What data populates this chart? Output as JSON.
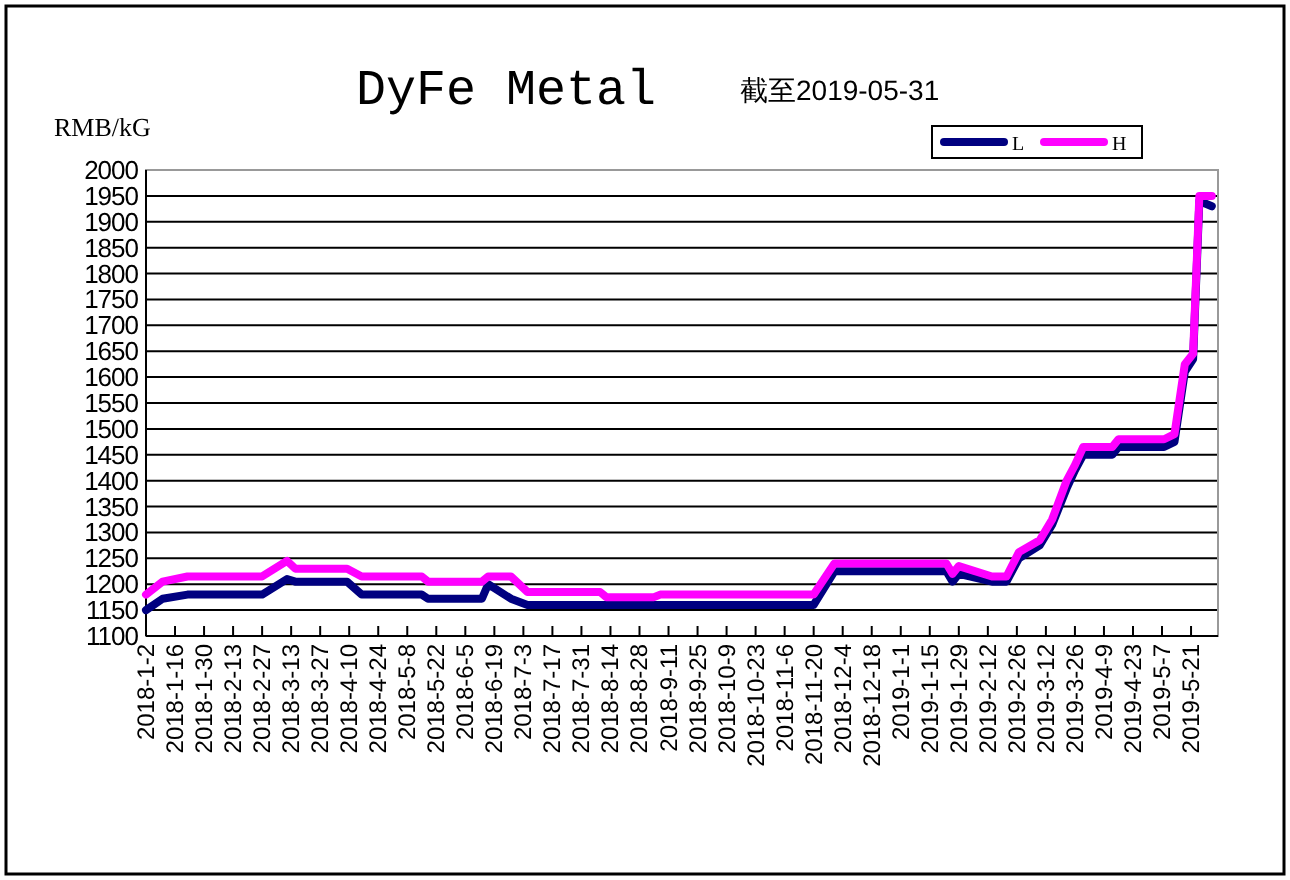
{
  "chart_data": {
    "type": "line",
    "title": "DyFe Metal",
    "subtitle": "截至2019-05-31",
    "ylabel": "RMB/kG",
    "x": [
      "2018-01-02",
      "2018-01-10",
      "2018-01-22",
      "2018-02-27",
      "2018-03-11",
      "2018-03-15",
      "2018-04-09",
      "2018-04-16",
      "2018-05-15",
      "2018-05-18",
      "2018-06-13",
      "2018-06-16",
      "2018-06-27",
      "2018-07-05",
      "2018-08-09",
      "2018-08-12",
      "2018-09-04",
      "2018-09-07",
      "2018-11-20",
      "2018-11-30",
      "2019-01-23",
      "2019-01-26",
      "2019-01-29",
      "2019-02-14",
      "2019-02-21",
      "2019-02-27",
      "2019-03-09",
      "2019-03-15",
      "2019-03-22",
      "2019-03-26",
      "2019-03-30",
      "2019-04-13",
      "2019-04-16",
      "2019-05-08",
      "2019-05-13",
      "2019-05-18",
      "2019-05-22",
      "2019-05-25",
      "2019-05-31"
    ],
    "series": [
      {
        "name": "L",
        "color": "#000080",
        "values": [
          1150,
          1172,
          1180,
          1180,
          1210,
          1205,
          1205,
          1180,
          1180,
          1172,
          1172,
          1200,
          1172,
          1160,
          1160,
          1160,
          1160,
          1160,
          1160,
          1225,
          1225,
          1205,
          1220,
          1205,
          1205,
          1250,
          1275,
          1315,
          1385,
          1420,
          1450,
          1450,
          1465,
          1465,
          1475,
          1610,
          1635,
          1940,
          1930
        ]
      },
      {
        "name": "H",
        "color": "#ff00ff",
        "values": [
          1180,
          1205,
          1215,
          1215,
          1245,
          1230,
          1230,
          1215,
          1215,
          1205,
          1205,
          1215,
          1215,
          1185,
          1185,
          1175,
          1175,
          1180,
          1180,
          1240,
          1240,
          1220,
          1235,
          1215,
          1215,
          1262,
          1285,
          1325,
          1400,
          1430,
          1465,
          1465,
          1480,
          1480,
          1490,
          1625,
          1645,
          1950,
          1950
        ]
      }
    ],
    "xlim": [
      "2018-01-02",
      "2019-06-03"
    ],
    "xticks": [
      {
        "value": "2018-01-02",
        "label": "2018-1-2"
      },
      {
        "value": "2018-01-16",
        "label": "2018-1-16"
      },
      {
        "value": "2018-01-30",
        "label": "2018-1-30"
      },
      {
        "value": "2018-02-13",
        "label": "2018-2-13"
      },
      {
        "value": "2018-02-27",
        "label": "2018-2-27"
      },
      {
        "value": "2018-03-13",
        "label": "2018-3-13"
      },
      {
        "value": "2018-03-27",
        "label": "2018-3-27"
      },
      {
        "value": "2018-04-10",
        "label": "2018-4-10"
      },
      {
        "value": "2018-04-24",
        "label": "2018-4-24"
      },
      {
        "value": "2018-05-08",
        "label": "2018-5-8"
      },
      {
        "value": "2018-05-22",
        "label": "2018-5-22"
      },
      {
        "value": "2018-06-05",
        "label": "2018-6-5"
      },
      {
        "value": "2018-06-19",
        "label": "2018-6-19"
      },
      {
        "value": "2018-07-03",
        "label": "2018-7-3"
      },
      {
        "value": "2018-07-17",
        "label": "2018-7-17"
      },
      {
        "value": "2018-07-31",
        "label": "2018-7-31"
      },
      {
        "value": "2018-08-14",
        "label": "2018-8-14"
      },
      {
        "value": "2018-08-28",
        "label": "2018-8-28"
      },
      {
        "value": "2018-09-11",
        "label": "2018-9-11"
      },
      {
        "value": "2018-09-25",
        "label": "2018-9-25"
      },
      {
        "value": "2018-10-09",
        "label": "2018-10-9"
      },
      {
        "value": "2018-10-23",
        "label": "2018-10-23"
      },
      {
        "value": "2018-11-06",
        "label": "2018-11-6"
      },
      {
        "value": "2018-11-20",
        "label": "2018-11-20"
      },
      {
        "value": "2018-12-04",
        "label": "2018-12-4"
      },
      {
        "value": "2018-12-18",
        "label": "2018-12-18"
      },
      {
        "value": "2019-01-01",
        "label": "2019-1-1"
      },
      {
        "value": "2019-01-15",
        "label": "2019-1-15"
      },
      {
        "value": "2019-01-29",
        "label": "2019-1-29"
      },
      {
        "value": "2019-02-12",
        "label": "2019-2-12"
      },
      {
        "value": "2019-02-26",
        "label": "2019-2-26"
      },
      {
        "value": "2019-03-12",
        "label": "2019-3-12"
      },
      {
        "value": "2019-03-26",
        "label": "2019-3-26"
      },
      {
        "value": "2019-04-09",
        "label": "2019-4-9"
      },
      {
        "value": "2019-04-23",
        "label": "2019-4-23"
      },
      {
        "value": "2019-05-07",
        "label": "2019-5-7"
      },
      {
        "value": "2019-05-21",
        "label": "2019-5-21"
      }
    ],
    "ylim": [
      1100,
      2000
    ],
    "yticks": [
      1100,
      1150,
      1200,
      1250,
      1300,
      1350,
      1400,
      1450,
      1500,
      1550,
      1600,
      1650,
      1700,
      1750,
      1800,
      1850,
      1900,
      1950,
      2000
    ],
    "grid": "y",
    "legend": "top right",
    "marker": "none",
    "line_style": "solid"
  }
}
